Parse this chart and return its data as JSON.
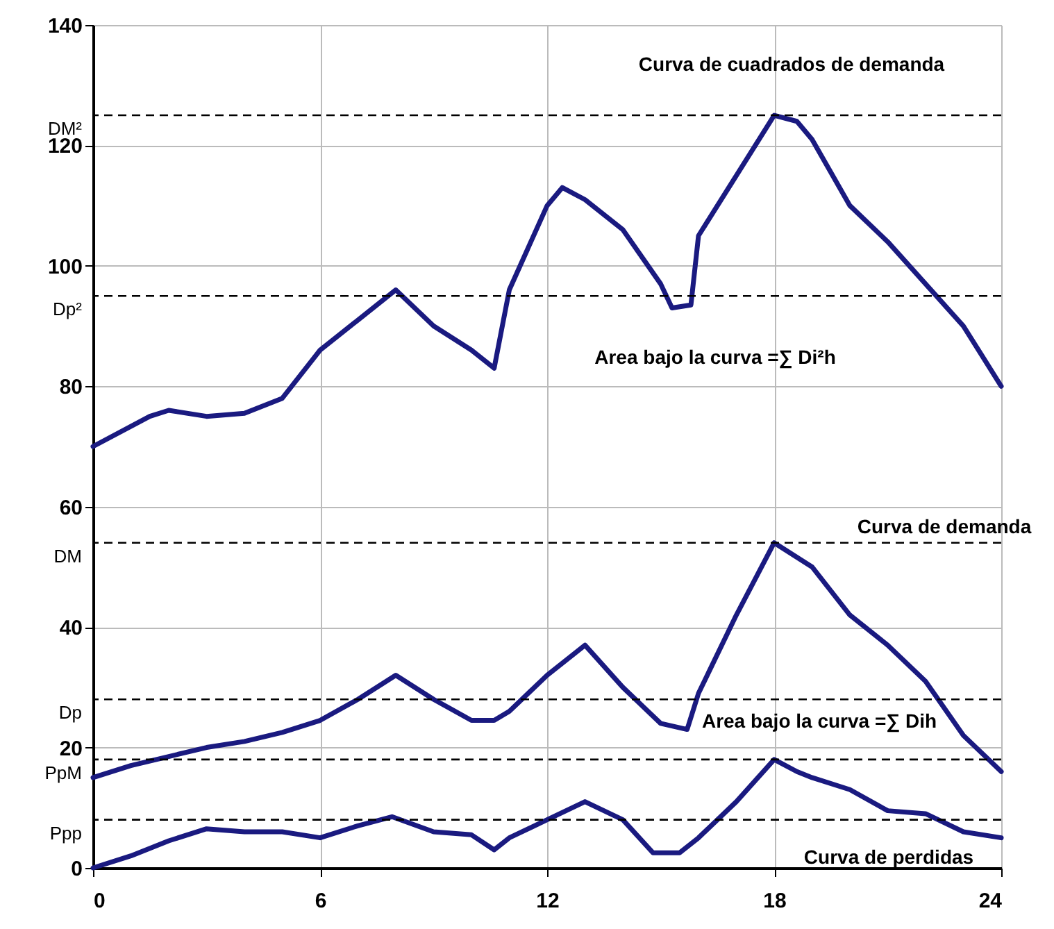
{
  "chart_data": {
    "type": "line",
    "xlim": [
      0,
      24
    ],
    "xticks": [
      0,
      6,
      12,
      18,
      24
    ],
    "ylim": [
      0,
      140
    ],
    "yticks": [
      0,
      20,
      40,
      60,
      80,
      100,
      120,
      140
    ],
    "grid": true,
    "marker": "none",
    "line_style": "solid",
    "series": [
      {
        "color": "#1a1a80",
        "x": [
          0,
          1.5,
          2,
          3,
          4,
          5,
          6,
          7,
          8,
          9,
          10,
          10.6,
          11,
          12,
          12.4,
          13,
          14,
          15,
          15.3,
          15.8,
          16,
          17,
          18,
          18.6,
          19,
          20,
          21,
          22,
          23,
          24
        ],
        "values": [
          70,
          75,
          76,
          75,
          75.5,
          78,
          86,
          91,
          96,
          90,
          86,
          83,
          96,
          110,
          113,
          111,
          106,
          97,
          93,
          93.5,
          105,
          115,
          125,
          124,
          121,
          110,
          104,
          97,
          90,
          80
        ]
      },
      {
        "color": "#1a1a80",
        "x": [
          0,
          1,
          2,
          3,
          4,
          5,
          6,
          7,
          8,
          9,
          10,
          10.6,
          11,
          12,
          13,
          14,
          15,
          15.7,
          16,
          17,
          18,
          19,
          20,
          21,
          22,
          23,
          24
        ],
        "values": [
          15,
          17,
          18.5,
          20,
          21,
          22.5,
          24.5,
          28,
          32,
          28,
          24.5,
          24.5,
          26,
          32,
          37,
          30,
          24,
          23,
          29,
          42,
          54,
          50,
          42,
          37,
          31,
          22,
          16
        ]
      },
      {
        "color": "#1a1a80",
        "x": [
          0,
          1,
          2,
          3,
          4,
          5,
          6,
          7,
          7.9,
          9,
          10,
          10.6,
          11,
          12,
          13,
          14,
          14.8,
          15.5,
          16,
          17,
          18,
          18.6,
          19,
          20,
          21,
          22,
          23,
          24
        ],
        "values": [
          0,
          2,
          4.5,
          6.5,
          6,
          6,
          5,
          7,
          8.5,
          6,
          5.5,
          3,
          5,
          8,
          11,
          8,
          2.5,
          2.5,
          5,
          11,
          18,
          16,
          15,
          13,
          9.5,
          9,
          6,
          5
        ]
      }
    ],
    "ref_lines": [
      {
        "axis": "y",
        "value": 125,
        "label": "DM²",
        "line_style": "dashed",
        "color": "#000000"
      },
      {
        "axis": "y",
        "value": 95,
        "label": "Dp²",
        "line_style": "dashed",
        "color": "#000000"
      },
      {
        "axis": "y",
        "value": 54,
        "label": "DM",
        "line_style": "dashed",
        "color": "#000000"
      },
      {
        "axis": "y",
        "value": 28,
        "label": "Dp",
        "line_style": "dashed",
        "color": "#000000"
      },
      {
        "axis": "y",
        "value": 18,
        "label": "PpM",
        "line_style": "dashed",
        "color": "#000000"
      },
      {
        "axis": "y",
        "value": 8,
        "label": "Ppp",
        "line_style": "dashed",
        "color": "#000000"
      }
    ],
    "annotations": [
      "Curva de cuadrados de demanda",
      "Area bajo la curva =∑ Di²h",
      "Curva de demanda",
      "Area bajo la curva =∑ Dih",
      "Curva de perdidas"
    ]
  }
}
